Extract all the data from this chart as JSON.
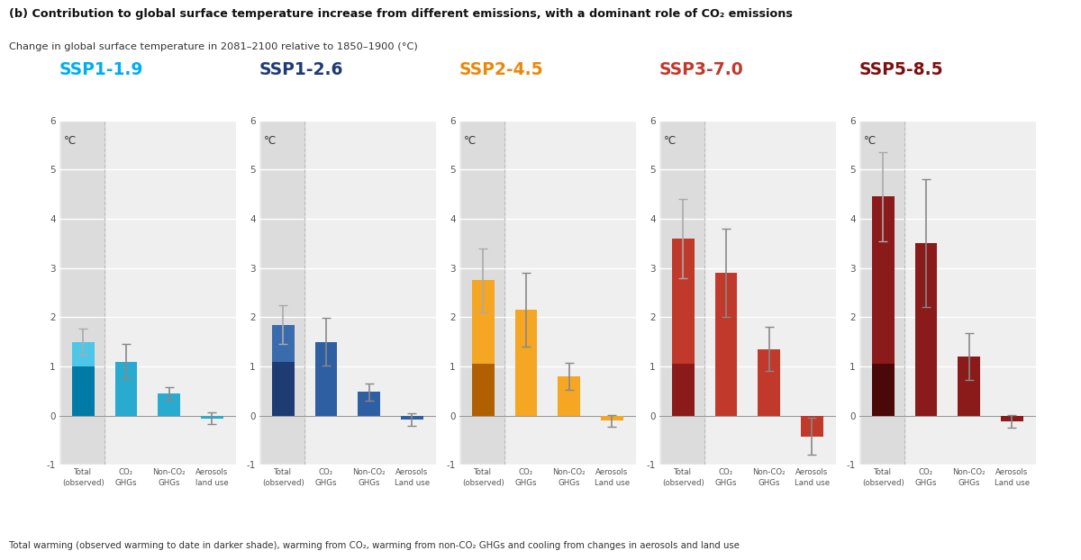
{
  "title_main": "(b) Contribution to global surface temperature increase from different emissions, with a dominant role of CO₂ emissions",
  "subtitle": "Change in global surface temperature in 2081–2100 relative to 1850–1900 (°C)",
  "footer": "Total warming (observed warming to date in darker shade), warming from CO₂, warming from non-CO₂ GHGs and cooling from changes in aerosols and land use",
  "scenarios": [
    {
      "name": "SSP1-1.9",
      "title_color": "#00AEEF",
      "bars": [
        {
          "label": "Total\n(observed)",
          "value": 1.0,
          "lighter": 1.5,
          "err_low": 0.27,
          "err_high": 0.27,
          "color_main": "#007BA7",
          "color_light": "#4DC6E8"
        },
        {
          "label": "CO₂\nGHGs",
          "value": 1.1,
          "lighter": null,
          "err_low": 0.35,
          "err_high": 0.35,
          "color_main": "#29AACF",
          "color_light": null
        },
        {
          "label": "Non-CO₂\nGHGs",
          "value": 0.45,
          "lighter": null,
          "err_low": 0.13,
          "err_high": 0.13,
          "color_main": "#29AACF",
          "color_light": null
        },
        {
          "label": "Aerosols\nland use",
          "value": -0.06,
          "lighter": null,
          "err_low": 0.12,
          "err_high": 0.12,
          "color_main": "#29AACF",
          "color_light": null
        }
      ]
    },
    {
      "name": "SSP1-2.6",
      "title_color": "#1F3B73",
      "bars": [
        {
          "label": "Total\n(observed)",
          "value": 1.1,
          "lighter": 1.85,
          "err_low": 0.4,
          "err_high": 0.4,
          "color_main": "#1F3B73",
          "color_light": "#3A6BAD"
        },
        {
          "label": "CO₂\nGHGs",
          "value": 1.5,
          "lighter": null,
          "err_low": 0.48,
          "err_high": 0.48,
          "color_main": "#2E5FA3",
          "color_light": null
        },
        {
          "label": "Non-CO₂\nGHGs",
          "value": 0.48,
          "lighter": null,
          "err_low": 0.18,
          "err_high": 0.18,
          "color_main": "#2E5FA3",
          "color_light": null
        },
        {
          "label": "Aerosols\nLand use",
          "value": -0.08,
          "lighter": null,
          "err_low": 0.12,
          "err_high": 0.12,
          "color_main": "#2E5FA3",
          "color_light": null
        }
      ]
    },
    {
      "name": "SSP2-4.5",
      "title_color": "#E8890C",
      "bars": [
        {
          "label": "Total\n(observed)",
          "value": 1.05,
          "lighter": 2.75,
          "err_low": 0.65,
          "err_high": 0.65,
          "color_main": "#B06000",
          "color_light": "#F5A623"
        },
        {
          "label": "CO₂\nGHGs",
          "value": 2.15,
          "lighter": null,
          "err_low": 0.75,
          "err_high": 0.75,
          "color_main": "#F5A623",
          "color_light": null
        },
        {
          "label": "Non-CO₂\nGHGs",
          "value": 0.8,
          "lighter": null,
          "err_low": 0.28,
          "err_high": 0.28,
          "color_main": "#F5A623",
          "color_light": null
        },
        {
          "label": "Aerosols\nLand use",
          "value": -0.1,
          "lighter": null,
          "err_low": 0.12,
          "err_high": 0.12,
          "color_main": "#F5A623",
          "color_light": null
        }
      ]
    },
    {
      "name": "SSP3-7.0",
      "title_color": "#C0392B",
      "bars": [
        {
          "label": "Total\n(observed)",
          "value": 1.05,
          "lighter": 3.6,
          "err_low": 0.8,
          "err_high": 0.8,
          "color_main": "#8B1A1A",
          "color_light": "#C0392B"
        },
        {
          "label": "CO₂\nGHGs",
          "value": 2.9,
          "lighter": null,
          "err_low": 0.9,
          "err_high": 0.9,
          "color_main": "#C0392B",
          "color_light": null
        },
        {
          "label": "Non-CO₂\nGHGs",
          "value": 1.35,
          "lighter": null,
          "err_low": 0.45,
          "err_high": 0.45,
          "color_main": "#C0392B",
          "color_light": null
        },
        {
          "label": "Aerosols\nLand use",
          "value": -0.42,
          "lighter": null,
          "err_low": 0.38,
          "err_high": 0.38,
          "color_main": "#C0392B",
          "color_light": null
        }
      ]
    },
    {
      "name": "SSP5-8.5",
      "title_color": "#7B1010",
      "bars": [
        {
          "label": "Total\n(observed)",
          "value": 1.05,
          "lighter": 4.45,
          "err_low": 0.9,
          "err_high": 0.9,
          "color_main": "#4A0808",
          "color_light": "#8B1A1A"
        },
        {
          "label": "CO₂\nGHGs",
          "value": 3.5,
          "lighter": null,
          "err_low": 1.3,
          "err_high": 1.3,
          "color_main": "#8B1A1A",
          "color_light": null
        },
        {
          "label": "Non-CO₂\nGHGs",
          "value": 1.2,
          "lighter": null,
          "err_low": 0.48,
          "err_high": 0.48,
          "color_main": "#8B1A1A",
          "color_light": null
        },
        {
          "label": "Aerosols\nLand use",
          "value": -0.12,
          "lighter": null,
          "err_low": 0.13,
          "err_high": 0.13,
          "color_main": "#8B1A1A",
          "color_light": null
        }
      ]
    }
  ],
  "ylim": [
    -1,
    6
  ],
  "yticks": [
    -1,
    0,
    1,
    2,
    3,
    4,
    5,
    6
  ],
  "background_color": "#FFFFFF",
  "plot_bg_color": "#EFEFEF",
  "shaded_col_color": "#DCDCDC"
}
